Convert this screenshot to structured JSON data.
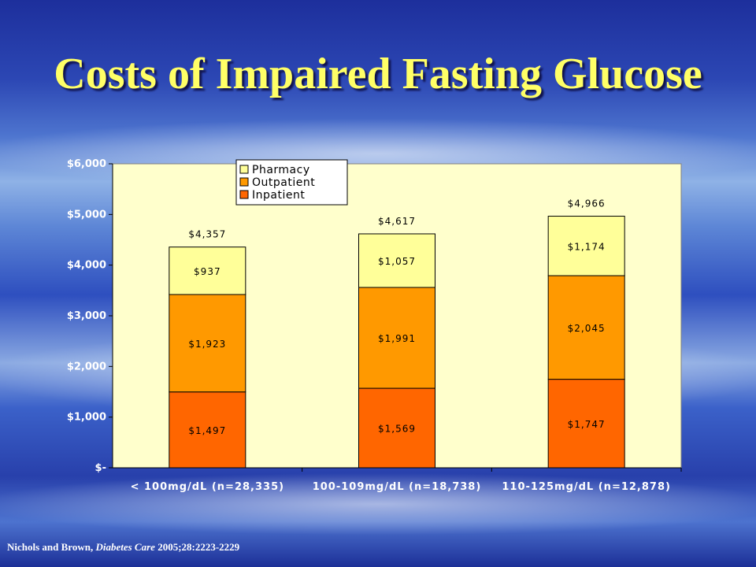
{
  "title": "Costs of Impaired Fasting Glucose",
  "citation": {
    "authors": "Nichols and Brown, ",
    "journal": "Diabetes Care",
    "details": " 2005;28:2223-2229"
  },
  "colors": {
    "plot_background": "#ffffcc",
    "Inpatient": "#ff6600",
    "Outpatient": "#ff9900",
    "Pharmacy": "#ffff99",
    "title": "#ffff66"
  },
  "chart_data": {
    "type": "bar",
    "stacked": true,
    "categories": [
      "< 100mg/dL (n=28,335)",
      "100-109mg/dL (n=18,738)",
      "110-125mg/dL (n=12,878)"
    ],
    "series": [
      {
        "name": "Inpatient",
        "values": [
          1497,
          1569,
          1747
        ],
        "labels": [
          "$1,497",
          "$1,569",
          "$1,747"
        ]
      },
      {
        "name": "Outpatient",
        "values": [
          1923,
          1991,
          2045
        ],
        "labels": [
          "$1,923",
          "$1,991",
          "$2,045"
        ]
      },
      {
        "name": "Pharmacy",
        "values": [
          937,
          1057,
          1174
        ],
        "labels": [
          "$937",
          "$1,057",
          "$1,174"
        ]
      }
    ],
    "totals": [
      4357,
      4617,
      4966
    ],
    "total_labels": [
      "$4,357",
      "$4,617",
      "$4,966"
    ],
    "ylim": [
      0,
      6000
    ],
    "yticks": [
      0,
      1000,
      2000,
      3000,
      4000,
      5000,
      6000
    ],
    "ytick_labels": [
      "$-",
      "$1,000",
      "$2,000",
      "$3,000",
      "$4,000",
      "$5,000",
      "$6,000"
    ],
    "legend_order": [
      "Pharmacy",
      "Outpatient",
      "Inpatient"
    ],
    "legend_position": "top-left",
    "grid": false
  }
}
